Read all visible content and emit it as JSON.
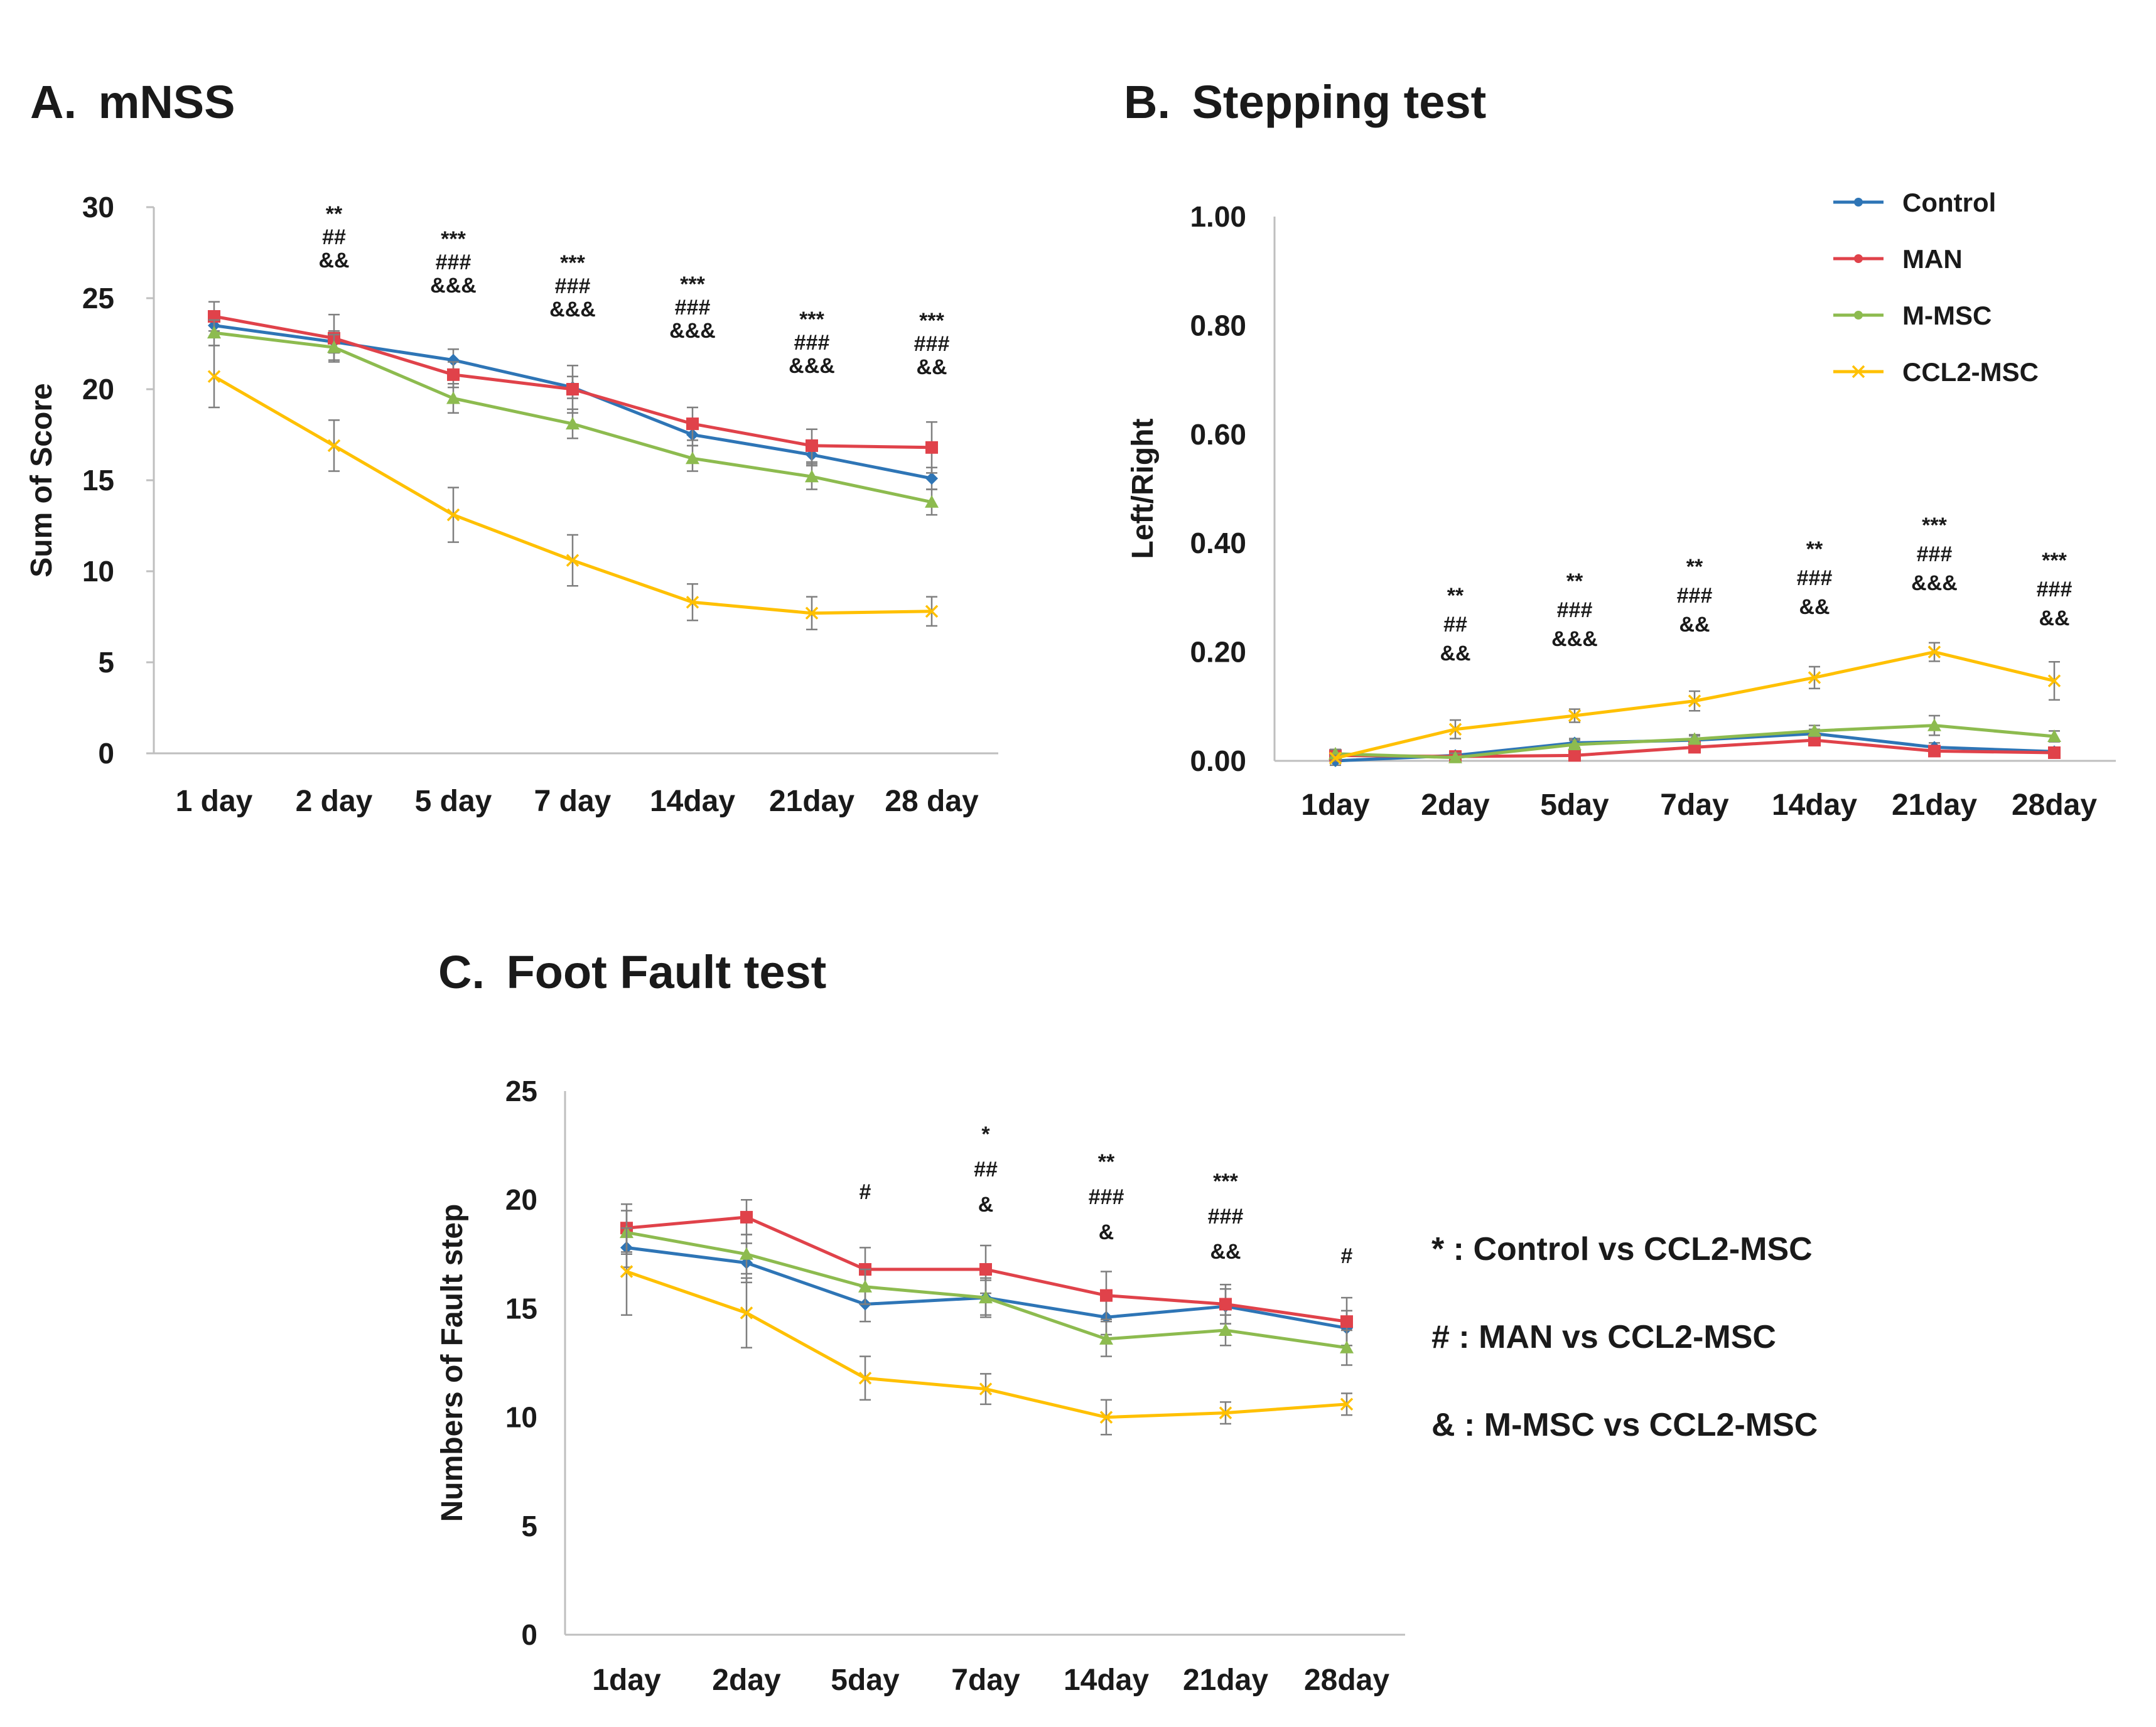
{
  "chart_data": [
    {
      "id": "A",
      "type": "line",
      "title_letter": "A.",
      "title": "mNSS",
      "ylabel": "Sum of Score",
      "ylim": [
        0,
        30
      ],
      "yticks": [
        "0",
        "5",
        "10",
        "15",
        "20",
        "25",
        "30"
      ],
      "categories": [
        "1 day",
        "2 day",
        "5 day",
        "7 day",
        "14day",
        "21day",
        "28 day"
      ],
      "series": [
        {
          "name": "Control",
          "values": [
            23.5,
            22.6,
            21.6,
            20.1,
            17.5,
            16.4,
            15.1
          ],
          "errors": [
            0.6,
            0.6,
            0.6,
            0.6,
            0.6,
            0.6,
            0.6
          ]
        },
        {
          "name": "MAN",
          "values": [
            24.0,
            22.8,
            20.8,
            20.0,
            18.1,
            16.9,
            16.8
          ],
          "errors": [
            0.8,
            1.3,
            0.7,
            1.3,
            0.9,
            0.9,
            1.4
          ]
        },
        {
          "name": "M-MSC",
          "values": [
            23.1,
            22.3,
            19.5,
            18.1,
            16.2,
            15.2,
            13.8
          ],
          "errors": [
            0.7,
            0.7,
            0.8,
            0.8,
            0.7,
            0.7,
            0.7
          ]
        },
        {
          "name": "CCL2-MSC",
          "values": [
            20.7,
            16.9,
            13.1,
            10.6,
            8.3,
            7.7,
            7.8
          ],
          "errors": [
            1.7,
            1.4,
            1.5,
            1.4,
            1.0,
            0.9,
            0.8
          ]
        }
      ],
      "annotations": [
        [],
        [
          "**",
          "##",
          "&&"
        ],
        [
          "***",
          "###",
          "&&&"
        ],
        [
          "***",
          "###",
          "&&&"
        ],
        [
          "***",
          "###",
          "&&&"
        ],
        [
          "***",
          "###",
          "&&&"
        ],
        [
          "***",
          "###",
          "&&"
        ]
      ]
    },
    {
      "id": "B",
      "type": "line",
      "title_letter": "B.",
      "title": "Stepping test",
      "ylabel": "Left/Right",
      "ylim": [
        0,
        1
      ],
      "yticks": [
        "0.00",
        "0.20",
        "0.40",
        "0.60",
        "0.80",
        "1.00"
      ],
      "categories": [
        "1day",
        "2day",
        "5day",
        "7day",
        "14day",
        "21day",
        "28day"
      ],
      "series": [
        {
          "name": "Control",
          "values": [
            0.0,
            0.01,
            0.033,
            0.038,
            0.05,
            0.025,
            0.017
          ],
          "errors": [
            0.008,
            0.008,
            0.008,
            0.008,
            0.008,
            0.008,
            0.008
          ]
        },
        {
          "name": "MAN",
          "values": [
            0.01,
            0.008,
            0.01,
            0.025,
            0.038,
            0.018,
            0.015
          ],
          "errors": [
            0.008,
            0.008,
            0.008,
            0.008,
            0.01,
            0.008,
            0.008
          ]
        },
        {
          "name": "M-MSC",
          "values": [
            0.013,
            0.006,
            0.03,
            0.04,
            0.055,
            0.065,
            0.045
          ],
          "errors": [
            0.008,
            0.008,
            0.008,
            0.008,
            0.01,
            0.018,
            0.01
          ]
        },
        {
          "name": "CCL2-MSC",
          "values": [
            0.005,
            0.058,
            0.083,
            0.11,
            0.153,
            0.2,
            0.147
          ],
          "errors": [
            0.005,
            0.017,
            0.012,
            0.018,
            0.02,
            0.017,
            0.035
          ]
        }
      ],
      "annotations": [
        [],
        [
          "**",
          "##",
          "&&"
        ],
        [
          "**",
          "###",
          "&&&"
        ],
        [
          "**",
          "###",
          "&&"
        ],
        [
          "**",
          "###",
          "&&"
        ],
        [
          "***",
          "###",
          "&&&"
        ],
        [
          "***",
          "###",
          "&&"
        ]
      ],
      "legend": {
        "position": "top-right",
        "entries": [
          "Control",
          "MAN",
          "M-MSC",
          "CCL2-MSC"
        ]
      }
    },
    {
      "id": "C",
      "type": "line",
      "title_letter": "C.",
      "title": "Foot Fault test",
      "ylabel": "Numbers of Fault step",
      "ylim": [
        0,
        25
      ],
      "yticks": [
        "0",
        "5",
        "10",
        "15",
        "20",
        "25"
      ],
      "categories": [
        "1day",
        "2day",
        "5day",
        "7day",
        "14day",
        "21day",
        "28day"
      ],
      "series": [
        {
          "name": "Control",
          "values": [
            17.8,
            17.1,
            15.2,
            15.5,
            14.6,
            15.1,
            14.1
          ],
          "errors": [
            0.9,
            0.9,
            0.8,
            0.9,
            0.8,
            0.8,
            0.8
          ]
        },
        {
          "name": "MAN",
          "values": [
            18.7,
            19.2,
            16.8,
            16.8,
            15.6,
            15.2,
            14.4
          ],
          "errors": [
            1.1,
            0.8,
            1.0,
            1.1,
            1.1,
            0.9,
            1.1
          ]
        },
        {
          "name": "M-MSC",
          "values": [
            18.5,
            17.5,
            16.0,
            15.5,
            13.6,
            14.0,
            13.2
          ],
          "errors": [
            1.0,
            0.9,
            0.8,
            0.8,
            0.8,
            0.7,
            0.8
          ]
        },
        {
          "name": "CCL2-MSC",
          "values": [
            16.7,
            14.8,
            11.8,
            11.3,
            10.0,
            10.2,
            10.6
          ],
          "errors": [
            2.0,
            1.6,
            1.0,
            0.7,
            0.8,
            0.5,
            0.5
          ]
        }
      ],
      "annotations": [
        [],
        [],
        [
          "#"
        ],
        [
          "*",
          "##",
          "&"
        ],
        [
          "**",
          "###",
          "&"
        ],
        [
          "***",
          "###",
          "&&"
        ],
        [
          "#"
        ]
      ]
    }
  ],
  "series_colors": {
    "Control": "#2e75b6",
    "MAN": "#e0424a",
    "M-MSC": "#8dbb4f",
    "CCL2-MSC": "#ffc000"
  },
  "notes": [
    "*  : Control vs CCL2-MSC",
    "#  : MAN vs CCL2-MSC",
    "& : M-MSC vs CCL2-MSC"
  ]
}
